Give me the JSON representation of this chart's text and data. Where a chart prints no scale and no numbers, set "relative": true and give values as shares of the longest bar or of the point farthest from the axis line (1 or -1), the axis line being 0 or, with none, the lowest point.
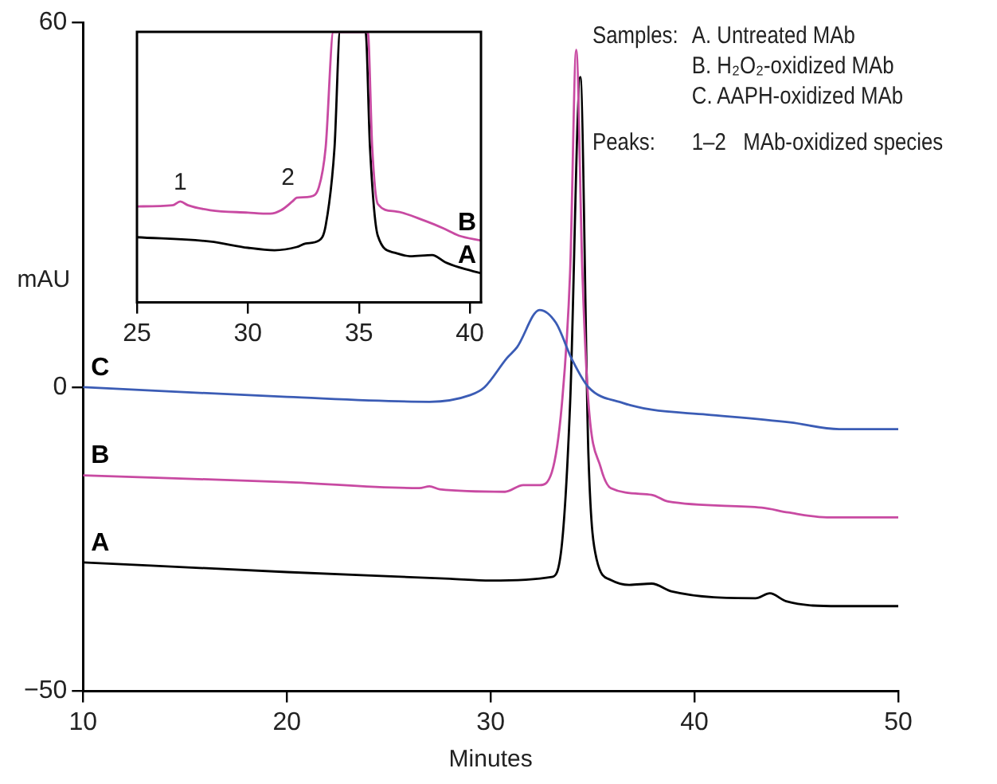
{
  "chart_data": [
    {
      "type": "line",
      "xlabel": "Minutes",
      "ylabel": "mAU",
      "xlim": [
        10,
        50
      ],
      "ylim": [
        -50,
        60
      ],
      "xticks": [
        10,
        20,
        30,
        40,
        50
      ],
      "yticks": [
        {
          "value": -50,
          "label": "−50"
        },
        0,
        60
      ],
      "legend": false,
      "grid": false,
      "marker": "none",
      "annotations": [
        "Samples:",
        "A. Untreated MAb",
        "B. H₂O₂-oxidized MAb",
        "C. AAPH-oxidized MAb",
        "Peaks:",
        "1–2   MAb-oxidized species"
      ],
      "series": [
        {
          "name": "C",
          "color": "#3b5cb5",
          "x": [
            10,
            20,
            27,
            29,
            29.7,
            30.8,
            31.3,
            32.4,
            33.2,
            34.0,
            34.8,
            36.5,
            37.9,
            40.6,
            44.7,
            47.1,
            50
          ],
          "values": [
            0,
            -1.6,
            -2.4,
            -1.3,
            0,
            4.8,
            6.6,
            12.7,
            10.6,
            4.5,
            0,
            -2.6,
            -3.7,
            -4.5,
            -5.8,
            -6.9,
            -6.9
          ]
        },
        {
          "name": "B",
          "color": "#c84aa2",
          "x": [
            10,
            20,
            26.5,
            27,
            27.5,
            30.7,
            31.6,
            32.4,
            33.0,
            33.5,
            33.9,
            34.2,
            34.5,
            34.8,
            35.4,
            35.9,
            37.9,
            38.7,
            43.3,
            44.6,
            46.5,
            50
          ],
          "values": [
            -14.5,
            -15.6,
            -16.6,
            -16.3,
            -16.8,
            -17.2,
            -16.1,
            -16.1,
            -14,
            -2.6,
            19,
            55.5,
            19,
            -2.6,
            -13.2,
            -16.6,
            -17.7,
            -18.8,
            -19.8,
            -20.6,
            -21.4,
            -21.4
          ]
        },
        {
          "name": "A",
          "color": "#000000",
          "x": [
            10,
            20,
            28,
            30,
            33.0,
            33.5,
            33.9,
            34.4,
            34.8,
            35.2,
            35.9,
            36.8,
            37.9,
            38.9,
            43,
            43.7,
            44.5,
            47.1,
            50
          ],
          "values": [
            -28.8,
            -30.4,
            -31.5,
            -31.8,
            -31.2,
            -25.7,
            -2.6,
            51,
            -11.4,
            -28.3,
            -31.7,
            -32.5,
            -32.3,
            -33.6,
            -34.7,
            -33.9,
            -35.2,
            -36,
            -36
          ]
        }
      ]
    },
    {
      "type": "line",
      "relative": true,
      "xlim": [
        25,
        40.5
      ],
      "xticks": [
        25,
        30,
        35,
        40
      ],
      "legend": false,
      "grid": false,
      "marker": "none",
      "annotations": [
        {
          "text": "1",
          "x": 26.95,
          "y": 0.373
        },
        {
          "text": "2",
          "x": 31.8,
          "y": 0.391
        }
      ],
      "series": [
        {
          "name": "B",
          "color": "#c84aa2",
          "x": [
            25,
            26.6,
            26.95,
            27.3,
            28.3,
            30.0,
            31.0,
            31.5,
            32.0,
            32.2,
            32.8,
            33.2,
            33.5,
            33.85,
            35.4,
            35.6,
            35.85,
            36.6,
            38.0,
            38.8,
            39.5,
            40.5
          ],
          "values": [
            0.355,
            0.359,
            0.373,
            0.359,
            0.341,
            0.332,
            0.328,
            0.341,
            0.373,
            0.387,
            0.391,
            0.427,
            0.571,
            1,
            1,
            0.571,
            0.364,
            0.337,
            0.301,
            0.274,
            0.247,
            0.229
          ]
        },
        {
          "name": "A",
          "color": "#000000",
          "x": [
            25,
            28.3,
            30,
            31.2,
            32.2,
            32.6,
            33.2,
            33.5,
            33.9,
            34.15,
            35.3,
            35.5,
            35.85,
            36.6,
            37.3,
            38.3,
            38.9,
            39.5,
            40.5
          ],
          "values": [
            0.241,
            0.225,
            0.202,
            0.193,
            0.205,
            0.218,
            0.229,
            0.283,
            0.571,
            1,
            1,
            0.571,
            0.247,
            0.184,
            0.171,
            0.175,
            0.148,
            0.13,
            0.108
          ]
        }
      ]
    }
  ]
}
